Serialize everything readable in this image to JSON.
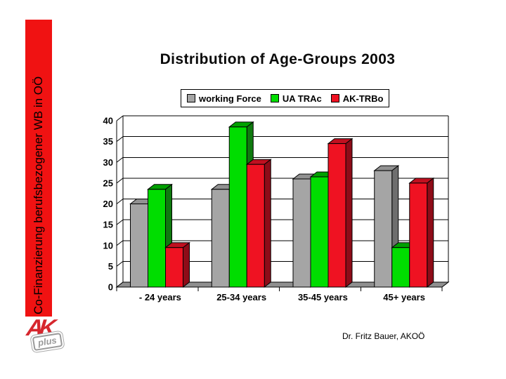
{
  "slide": {
    "background": "#ffffff"
  },
  "sidebar": {
    "text": "Co-Finanzierung berufsbezogener WB in OÖ",
    "bg_color": "#f01212",
    "text_color": "#000000"
  },
  "logo": {
    "ak_text": "AK",
    "plus_text": "plus",
    "ak_color": "#d6272e",
    "plus_color": "#999999"
  },
  "title": {
    "text": "Distribution of Age-Groups 2003"
  },
  "footer": {
    "credit": "Dr. Fritz Bauer, AKOÖ"
  },
  "chart_data": {
    "type": "bar",
    "style": "3d",
    "title": "Distribution of Age-Groups 2003",
    "categories": [
      "- 24 years",
      "25-34 years",
      "35-45 years",
      "45+ years"
    ],
    "series": [
      {
        "name": "working Force",
        "values": [
          20,
          23.5,
          26,
          28
        ],
        "color_front": "#a5a5a5",
        "color_top": "#919191",
        "color_side": "#6e6e6e"
      },
      {
        "name": "UA TRAc",
        "values": [
          23.5,
          38.5,
          26.5,
          9.5
        ],
        "color_front": "#00dd00",
        "color_top": "#00a000",
        "color_side": "#0f7a0f"
      },
      {
        "name": "AK-TRBo",
        "values": [
          9.5,
          29.5,
          34.5,
          25
        ],
        "color_front": "#ef1222",
        "color_top": "#c01020",
        "color_side": "#8e0c18"
      }
    ],
    "xlabel": "",
    "ylabel": "",
    "ylim": [
      0,
      40
    ],
    "yticks": [
      0,
      5,
      10,
      15,
      20,
      25,
      30,
      35,
      40
    ],
    "grid": true,
    "legend_position": "top",
    "floor_color": "#8f8f8f",
    "wall_color": "#ffffff"
  }
}
